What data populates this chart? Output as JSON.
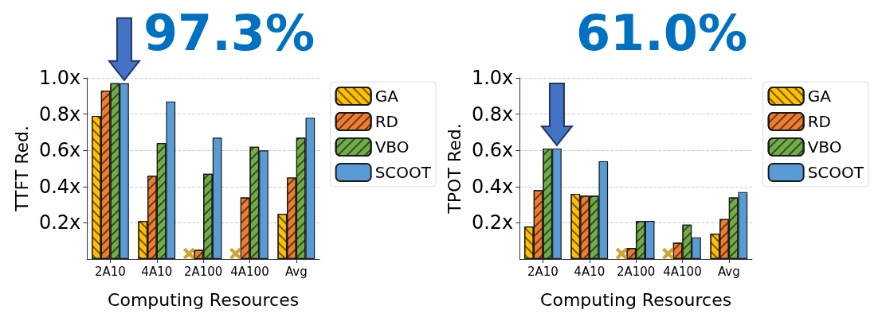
{
  "chart_data": [
    {
      "type": "bar",
      "ylabel": "TTFT Red.",
      "xlabel": "Computing Resources",
      "categories": [
        "2A10",
        "4A10",
        "2A100",
        "4A100",
        "Avg"
      ],
      "series": [
        {
          "name": "GA",
          "color": "#ffc000",
          "values": [
            0.79,
            0.21,
            null,
            null,
            0.25
          ]
        },
        {
          "name": "RD",
          "color": "#ed7d31",
          "values": [
            0.93,
            0.46,
            0.05,
            0.34,
            0.45
          ]
        },
        {
          "name": "VBO",
          "color": "#70ad47",
          "values": [
            0.97,
            0.64,
            0.47,
            0.62,
            0.67
          ]
        },
        {
          "name": "SCOOT",
          "color": "#5b9bd5",
          "values": [
            0.97,
            0.87,
            0.67,
            0.6,
            0.78
          ]
        },
        {
          "type": "scatter",
          "marker": "cross",
          "color": "#c09000",
          "x": [
            "2A100",
            "4A100"
          ],
          "values": [
            0.03,
            0.03
          ]
        }
      ],
      "ylim": [
        0,
        1
      ],
      "yticks": [
        {
          "value": 0.2,
          "label": "0.2x"
        },
        {
          "value": 0.4,
          "label": "0.4x"
        },
        {
          "value": 0.6,
          "label": "0.6x"
        },
        {
          "value": 0.8,
          "label": "0.8x"
        },
        {
          "value": 1,
          "label": "1.0x"
        }
      ],
      "grid": "y",
      "legend": "right",
      "annotations": [
        {
          "text": "97.3%",
          "x": "2A10",
          "y": 0.97
        }
      ]
    },
    {
      "type": "bar",
      "ylabel": "TPOT Red.",
      "xlabel": "Computing Resources",
      "categories": [
        "2A10",
        "4A10",
        "2A100",
        "4A100",
        "Avg"
      ],
      "series": [
        {
          "name": "GA",
          "color": "#ffc000",
          "values": [
            0.18,
            0.36,
            null,
            null,
            0.14
          ]
        },
        {
          "name": "RD",
          "color": "#ed7d31",
          "values": [
            0.38,
            0.35,
            0.06,
            0.09,
            0.22
          ]
        },
        {
          "name": "VBO",
          "color": "#70ad47",
          "values": [
            0.61,
            0.35,
            0.21,
            0.19,
            0.34
          ]
        },
        {
          "name": "SCOOT",
          "color": "#5b9bd5",
          "values": [
            0.61,
            0.54,
            0.21,
            0.12,
            0.37
          ]
        },
        {
          "type": "scatter",
          "marker": "cross",
          "color": "#c09000",
          "x": [
            "2A100",
            "4A100"
          ],
          "values": [
            0.03,
            0.03
          ]
        }
      ],
      "ylim": [
        0,
        1
      ],
      "yticks": [
        {
          "value": 0.2,
          "label": "0.2x"
        },
        {
          "value": 0.4,
          "label": "0.4x"
        },
        {
          "value": 0.6,
          "label": "0.6x"
        },
        {
          "value": 0.8,
          "label": "0.8x"
        },
        {
          "value": 1,
          "label": "1.0x"
        }
      ],
      "grid": "y",
      "legend": "right",
      "annotations": [
        {
          "text": "61.0%",
          "x": "2A10",
          "y": 0.61
        }
      ]
    }
  ]
}
